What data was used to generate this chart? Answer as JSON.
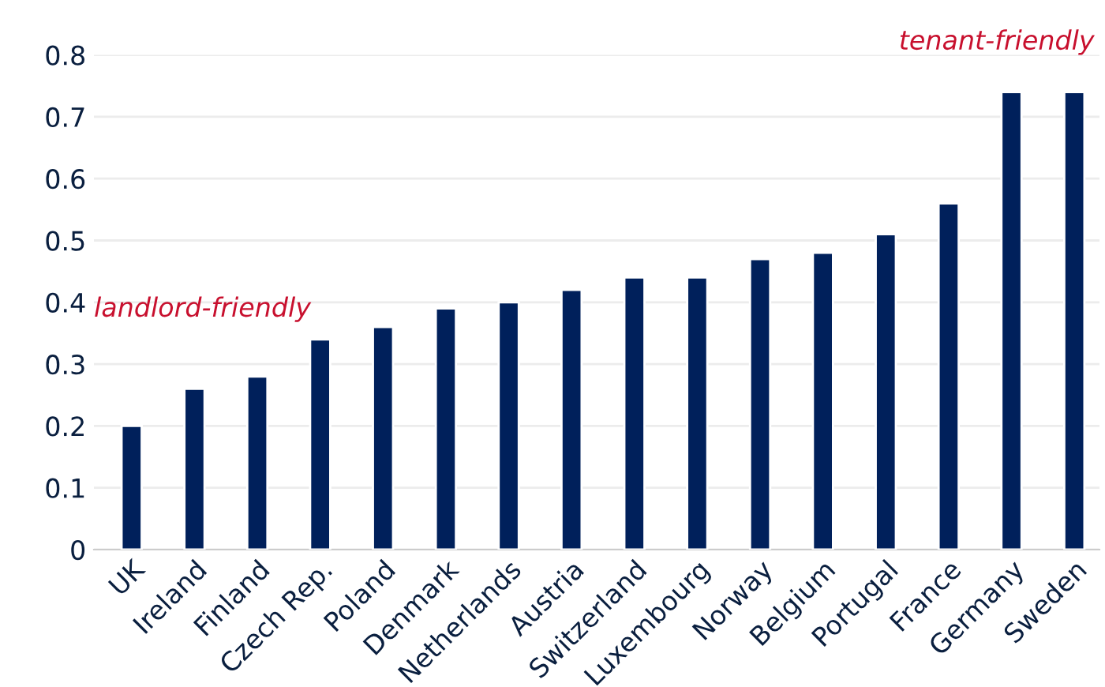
{
  "chart_data": {
    "type": "bar",
    "categories": [
      "UK",
      "Ireland",
      "Finland",
      "Czech Rep.",
      "Poland",
      "Denmark",
      "Netherlands",
      "Austria",
      "Switzerland",
      "Luxembourg",
      "Norway",
      "Belgium",
      "Portugal",
      "France",
      "Germany",
      "Sweden"
    ],
    "values": [
      0.2,
      0.26,
      0.28,
      0.34,
      0.36,
      0.39,
      0.4,
      0.42,
      0.44,
      0.44,
      0.47,
      0.48,
      0.51,
      0.56,
      0.74,
      0.74
    ],
    "color": "#00205b",
    "ylim": [
      0,
      0.8
    ],
    "yticks": [
      0,
      0.1,
      0.2,
      0.3,
      0.4,
      0.5,
      0.6,
      0.7,
      0.8
    ],
    "grid": "y",
    "annotations": [
      "landlord-friendly",
      "tenant-friendly"
    ]
  }
}
